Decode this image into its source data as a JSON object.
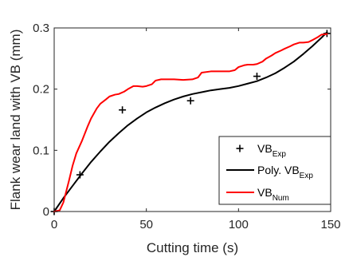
{
  "chart_data": {
    "type": "line",
    "xlabel": "Cutting time (s)",
    "ylabel": "Flank wear land with VB (mm)",
    "xlim": [
      0,
      150
    ],
    "ylim": [
      0,
      0.3
    ],
    "xticks": [
      0,
      50,
      100,
      150
    ],
    "yticks": [
      0,
      0.1,
      0.2,
      0.3
    ],
    "xtick_labels": [
      "0",
      "50",
      "100",
      "150"
    ],
    "ytick_labels": [
      "0",
      "0.1",
      "0.2",
      "0.3"
    ],
    "grid": false,
    "legend_position": "bottom-right",
    "series": [
      {
        "name": "VB",
        "name_sub": "Exp",
        "kind": "markers",
        "marker": "+",
        "color": "#000000",
        "x": [
          0,
          14,
          37,
          74,
          110,
          148
        ],
        "y": [
          0,
          0.06,
          0.166,
          0.181,
          0.221,
          0.291
        ]
      },
      {
        "name": "Poly. VB",
        "name_sub": "Exp",
        "kind": "line",
        "color": "#000000",
        "x": [
          0,
          5,
          10,
          15,
          20,
          25,
          30,
          35,
          40,
          45,
          50,
          55,
          60,
          65,
          70,
          75,
          80,
          85,
          90,
          95,
          100,
          105,
          110,
          115,
          120,
          125,
          130,
          135,
          140,
          145,
          148
        ],
        "y": [
          0,
          0.022,
          0.042,
          0.062,
          0.081,
          0.098,
          0.114,
          0.128,
          0.141,
          0.152,
          0.162,
          0.17,
          0.177,
          0.183,
          0.188,
          0.192,
          0.195,
          0.198,
          0.2,
          0.202,
          0.205,
          0.209,
          0.213,
          0.219,
          0.226,
          0.235,
          0.245,
          0.257,
          0.27,
          0.284,
          0.293
        ]
      },
      {
        "name": "VB",
        "name_sub": "Num",
        "kind": "line",
        "color": "#ff0000",
        "x": [
          0,
          3,
          5,
          8,
          10,
          12,
          15,
          18,
          20,
          23,
          25,
          28,
          30,
          33,
          35,
          38,
          40,
          43,
          45,
          48,
          50,
          53,
          55,
          58,
          60,
          65,
          70,
          75,
          78,
          80,
          85,
          90,
          95,
          98,
          100,
          103,
          105,
          108,
          110,
          113,
          115,
          118,
          120,
          123,
          125,
          128,
          130,
          133,
          135,
          138,
          140,
          143,
          145,
          148
        ],
        "y": [
          0,
          0.002,
          0.015,
          0.05,
          0.075,
          0.095,
          0.115,
          0.138,
          0.152,
          0.168,
          0.176,
          0.183,
          0.188,
          0.191,
          0.192,
          0.196,
          0.2,
          0.205,
          0.205,
          0.204,
          0.205,
          0.208,
          0.214,
          0.216,
          0.216,
          0.216,
          0.215,
          0.216,
          0.219,
          0.227,
          0.229,
          0.229,
          0.229,
          0.231,
          0.236,
          0.239,
          0.24,
          0.24,
          0.241,
          0.245,
          0.25,
          0.255,
          0.259,
          0.263,
          0.266,
          0.27,
          0.273,
          0.276,
          0.276,
          0.277,
          0.28,
          0.285,
          0.289,
          0.29
        ]
      }
    ]
  }
}
